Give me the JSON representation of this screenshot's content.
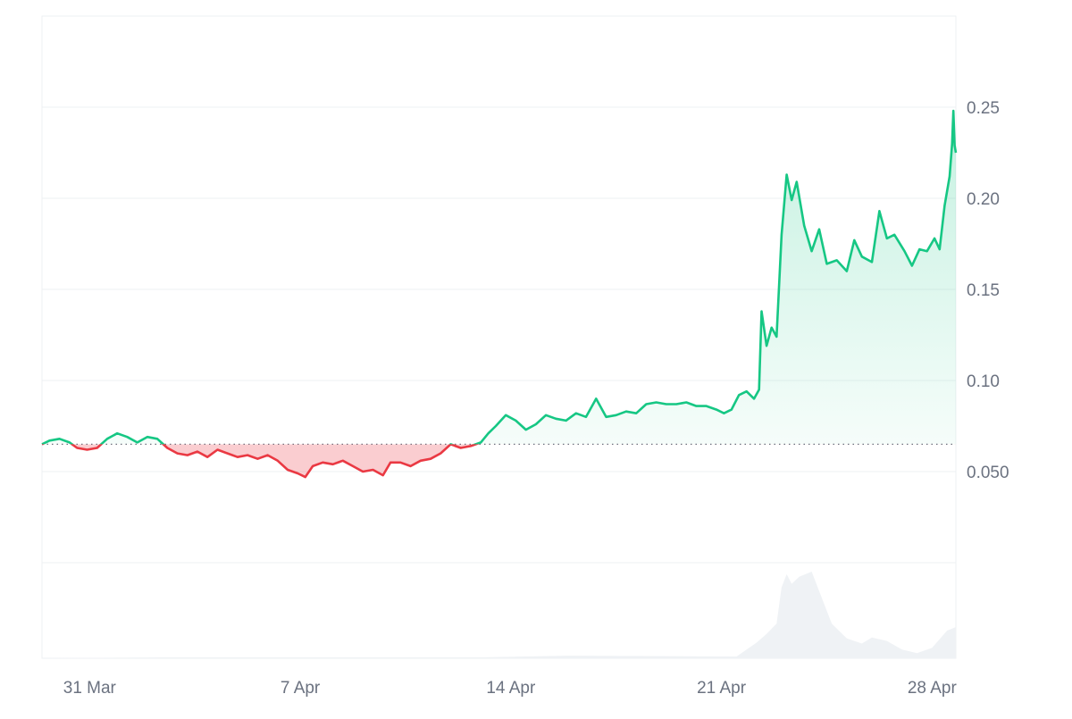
{
  "chart_data": {
    "type": "area",
    "title": "",
    "xlabel": "",
    "ylabel": "",
    "x_ticks": [
      "31 Mar",
      "7 Apr",
      "14 Apr",
      "21 Apr",
      "28 Apr"
    ],
    "x_tick_dates": [
      "2025-03-31",
      "2025-04-07",
      "2025-04-14",
      "2025-04-21",
      "2025-04-28"
    ],
    "x_range": [
      "2025-03-29 10:00",
      "2025-04-28 19:00"
    ],
    "y_ticks": [
      "0.050",
      "0.10",
      "0.15",
      "0.20",
      "0.25"
    ],
    "y_tick_values": [
      0.05,
      0.1,
      0.15,
      0.2,
      0.25
    ],
    "ylim": [
      0.0,
      0.3
    ],
    "baseline": 0.065,
    "colors": {
      "up": "#16c784",
      "down": "#ea3943",
      "grid": "#eef0f3",
      "volume": "#eff2f5",
      "axis_text": "#6b7280"
    },
    "series": [
      {
        "values": [
          [
            "2025-03-29 10:00",
            0.065
          ],
          [
            "2025-03-29 16:00",
            0.067
          ],
          [
            "2025-03-30 00:00",
            0.068
          ],
          [
            "2025-03-30 08:00",
            0.066
          ],
          [
            "2025-03-30 14:00",
            0.063
          ],
          [
            "2025-03-30 22:00",
            0.062
          ],
          [
            "2025-03-31 06:00",
            0.063
          ],
          [
            "2025-03-31 14:00",
            0.068
          ],
          [
            "2025-03-31 22:00",
            0.071
          ],
          [
            "2025-04-01 06:00",
            0.069
          ],
          [
            "2025-04-01 14:00",
            0.066
          ],
          [
            "2025-04-01 22:00",
            0.069
          ],
          [
            "2025-04-02 06:00",
            0.068
          ],
          [
            "2025-04-02 14:00",
            0.063
          ],
          [
            "2025-04-02 22:00",
            0.06
          ],
          [
            "2025-04-03 06:00",
            0.059
          ],
          [
            "2025-04-03 14:00",
            0.061
          ],
          [
            "2025-04-03 22:00",
            0.058
          ],
          [
            "2025-04-04 06:00",
            0.062
          ],
          [
            "2025-04-04 14:00",
            0.06
          ],
          [
            "2025-04-04 22:00",
            0.058
          ],
          [
            "2025-04-05 06:00",
            0.059
          ],
          [
            "2025-04-05 14:00",
            0.057
          ],
          [
            "2025-04-05 22:00",
            0.059
          ],
          [
            "2025-04-06 06:00",
            0.056
          ],
          [
            "2025-04-06 14:00",
            0.051
          ],
          [
            "2025-04-06 22:00",
            0.049
          ],
          [
            "2025-04-07 04:00",
            0.047
          ],
          [
            "2025-04-07 10:00",
            0.053
          ],
          [
            "2025-04-07 18:00",
            0.055
          ],
          [
            "2025-04-08 02:00",
            0.054
          ],
          [
            "2025-04-08 10:00",
            0.056
          ],
          [
            "2025-04-08 18:00",
            0.053
          ],
          [
            "2025-04-09 02:00",
            0.05
          ],
          [
            "2025-04-09 10:00",
            0.051
          ],
          [
            "2025-04-09 18:00",
            0.048
          ],
          [
            "2025-04-10 00:00",
            0.055
          ],
          [
            "2025-04-10 08:00",
            0.055
          ],
          [
            "2025-04-10 16:00",
            0.053
          ],
          [
            "2025-04-11 00:00",
            0.056
          ],
          [
            "2025-04-11 08:00",
            0.057
          ],
          [
            "2025-04-11 16:00",
            0.06
          ],
          [
            "2025-04-12 00:00",
            0.065
          ],
          [
            "2025-04-12 08:00",
            0.063
          ],
          [
            "2025-04-12 16:00",
            0.064
          ],
          [
            "2025-04-13 00:00",
            0.066
          ],
          [
            "2025-04-13 06:00",
            0.071
          ],
          [
            "2025-04-13 12:00",
            0.075
          ],
          [
            "2025-04-13 20:00",
            0.081
          ],
          [
            "2025-04-14 04:00",
            0.078
          ],
          [
            "2025-04-14 12:00",
            0.073
          ],
          [
            "2025-04-14 20:00",
            0.076
          ],
          [
            "2025-04-15 04:00",
            0.081
          ],
          [
            "2025-04-15 12:00",
            0.079
          ],
          [
            "2025-04-15 20:00",
            0.078
          ],
          [
            "2025-04-16 04:00",
            0.082
          ],
          [
            "2025-04-16 12:00",
            0.08
          ],
          [
            "2025-04-16 20:00",
            0.09
          ],
          [
            "2025-04-17 04:00",
            0.08
          ],
          [
            "2025-04-17 12:00",
            0.081
          ],
          [
            "2025-04-17 20:00",
            0.083
          ],
          [
            "2025-04-18 04:00",
            0.082
          ],
          [
            "2025-04-18 12:00",
            0.087
          ],
          [
            "2025-04-18 20:00",
            0.088
          ],
          [
            "2025-04-19 04:00",
            0.087
          ],
          [
            "2025-04-19 12:00",
            0.087
          ],
          [
            "2025-04-19 20:00",
            0.088
          ],
          [
            "2025-04-20 04:00",
            0.086
          ],
          [
            "2025-04-20 12:00",
            0.086
          ],
          [
            "2025-04-20 20:00",
            0.084
          ],
          [
            "2025-04-21 02:00",
            0.082
          ],
          [
            "2025-04-21 08:00",
            0.084
          ],
          [
            "2025-04-21 14:00",
            0.092
          ],
          [
            "2025-04-21 20:00",
            0.094
          ],
          [
            "2025-04-22 02:00",
            0.09
          ],
          [
            "2025-04-22 06:00",
            0.095
          ],
          [
            "2025-04-22 08:00",
            0.138
          ],
          [
            "2025-04-22 12:00",
            0.119
          ],
          [
            "2025-04-22 16:00",
            0.129
          ],
          [
            "2025-04-22 20:00",
            0.124
          ],
          [
            "2025-04-23 00:00",
            0.18
          ],
          [
            "2025-04-23 04:00",
            0.213
          ],
          [
            "2025-04-23 08:00",
            0.199
          ],
          [
            "2025-04-23 12:00",
            0.209
          ],
          [
            "2025-04-23 18:00",
            0.185
          ],
          [
            "2025-04-24 00:00",
            0.171
          ],
          [
            "2025-04-24 06:00",
            0.183
          ],
          [
            "2025-04-24 12:00",
            0.164
          ],
          [
            "2025-04-24 20:00",
            0.166
          ],
          [
            "2025-04-25 04:00",
            0.16
          ],
          [
            "2025-04-25 10:00",
            0.177
          ],
          [
            "2025-04-25 16:00",
            0.168
          ],
          [
            "2025-04-26 00:00",
            0.165
          ],
          [
            "2025-04-26 06:00",
            0.193
          ],
          [
            "2025-04-26 12:00",
            0.178
          ],
          [
            "2025-04-26 18:00",
            0.18
          ],
          [
            "2025-04-27 02:00",
            0.171
          ],
          [
            "2025-04-27 08:00",
            0.163
          ],
          [
            "2025-04-27 14:00",
            0.172
          ],
          [
            "2025-04-27 20:00",
            0.171
          ],
          [
            "2025-04-28 02:00",
            0.178
          ],
          [
            "2025-04-28 06:00",
            0.172
          ],
          [
            "2025-04-28 10:00",
            0.196
          ],
          [
            "2025-04-28 14:00",
            0.212
          ],
          [
            "2025-04-28 16:00",
            0.23
          ],
          [
            "2025-04-28 17:00",
            0.248
          ],
          [
            "2025-04-28 18:00",
            0.229
          ],
          [
            "2025-04-28 19:00",
            0.225
          ]
        ]
      }
    ],
    "volume": {
      "ylim": [
        0,
        1
      ],
      "values": [
        [
          "2025-03-29 10:00",
          0.0
        ],
        [
          "2025-04-02 12:00",
          0.01
        ],
        [
          "2025-04-07 00:00",
          0.01
        ],
        [
          "2025-04-13 00:00",
          0.01
        ],
        [
          "2025-04-16 00:00",
          0.03
        ],
        [
          "2025-04-21 12:00",
          0.02
        ],
        [
          "2025-04-22 04:00",
          0.18
        ],
        [
          "2025-04-22 12:00",
          0.28
        ],
        [
          "2025-04-22 20:00",
          0.4
        ],
        [
          "2025-04-23 00:00",
          0.82
        ],
        [
          "2025-04-23 04:00",
          0.97
        ],
        [
          "2025-04-23 08:00",
          0.86
        ],
        [
          "2025-04-23 14:00",
          0.94
        ],
        [
          "2025-04-24 00:00",
          1.0
        ],
        [
          "2025-04-24 08:00",
          0.7
        ],
        [
          "2025-04-24 16:00",
          0.4
        ],
        [
          "2025-04-25 04:00",
          0.23
        ],
        [
          "2025-04-25 16:00",
          0.17
        ],
        [
          "2025-04-26 00:00",
          0.24
        ],
        [
          "2025-04-26 12:00",
          0.2
        ],
        [
          "2025-04-27 00:00",
          0.1
        ],
        [
          "2025-04-27 12:00",
          0.06
        ],
        [
          "2025-04-28 00:00",
          0.12
        ],
        [
          "2025-04-28 12:00",
          0.32
        ],
        [
          "2025-04-28 19:00",
          0.36
        ]
      ]
    }
  }
}
